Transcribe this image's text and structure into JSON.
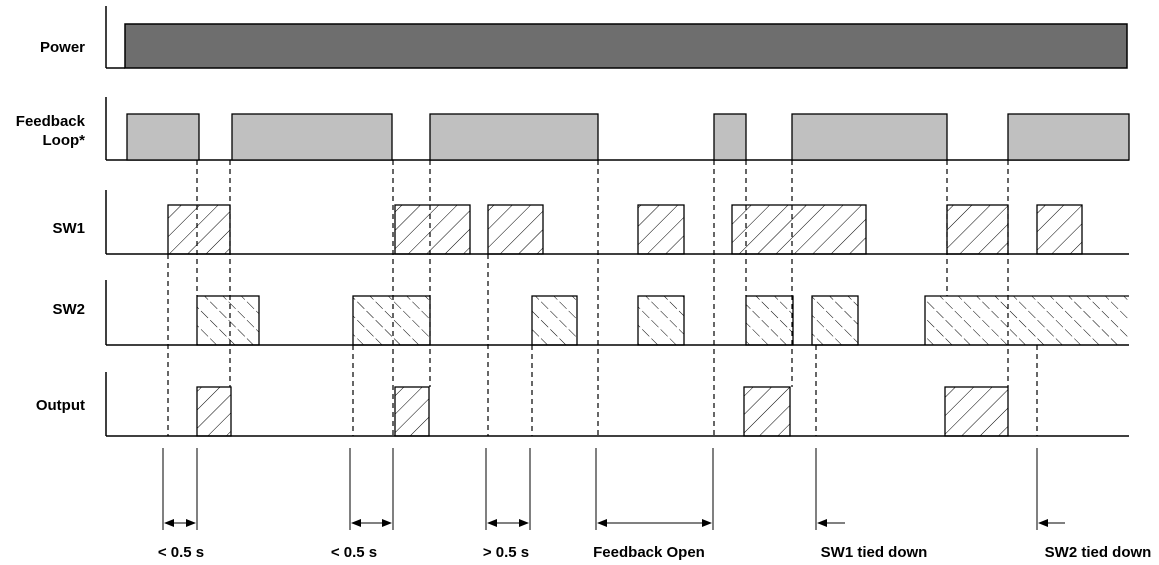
{
  "signals": {
    "power": "Power",
    "feedback_line1": "Feedback",
    "feedback_line2": "Loop*",
    "sw1": "SW1",
    "sw2": "SW2",
    "output": "Output"
  },
  "annotations": {
    "a1": "< 0.5 s",
    "a2": "< 0.5 s",
    "a3": "> 0.5 s",
    "a4": "Feedback Open",
    "a5": "SW1 tied down",
    "a6": "SW2 tied down"
  },
  "colors": {
    "power_fill": "#6e6e6e",
    "feedback_fill": "#c0c0c0",
    "line": "#000000",
    "background": "#ffffff"
  }
}
